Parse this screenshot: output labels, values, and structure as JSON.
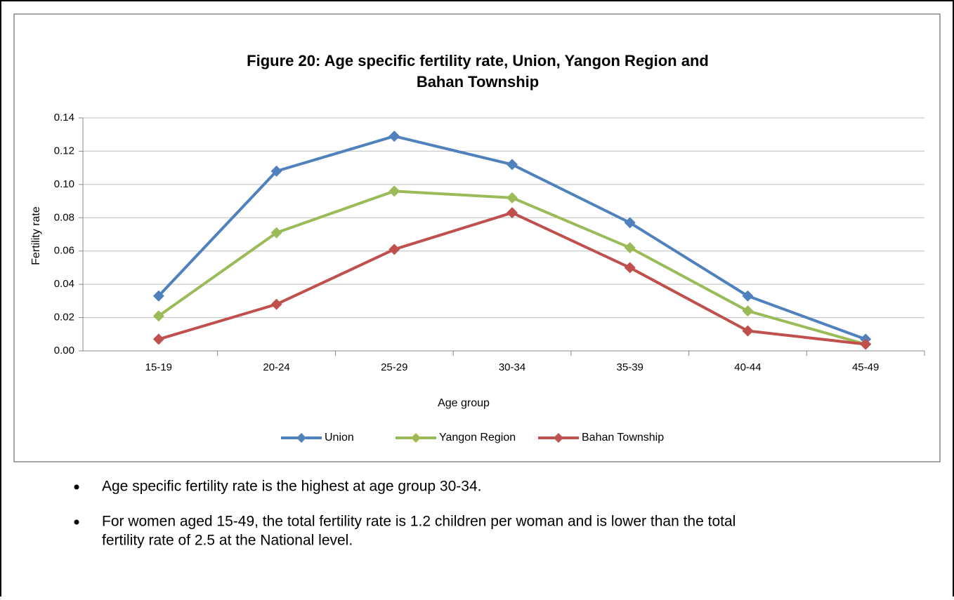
{
  "chart_data": {
    "type": "line",
    "title": "Figure 20: Age specific fertility rate, Union, Yangon Region and",
    "title_line2": "Bahan Township",
    "x_label": "Age group",
    "y_label": "Fertility rate",
    "categories": [
      "15-19",
      "20-24",
      "25-29",
      "30-34",
      "35-39",
      "40-44",
      "45-49"
    ],
    "series": [
      {
        "name": "Union",
        "color": "#4f81bd",
        "values": [
          0.033,
          0.108,
          0.129,
          0.112,
          0.077,
          0.033,
          0.007
        ]
      },
      {
        "name": "Yangon Region",
        "color": "#9bbb59",
        "values": [
          0.021,
          0.071,
          0.096,
          0.092,
          0.062,
          0.024,
          0.004
        ]
      },
      {
        "name": "Bahan Township",
        "color": "#c0504d",
        "values": [
          0.007,
          0.028,
          0.061,
          0.083,
          0.05,
          0.012,
          0.004
        ]
      }
    ],
    "ylim": [
      0,
      0.14
    ],
    "yticks": [
      {
        "value": 0,
        "label": "0.00"
      },
      0.02,
      0.04,
      0.06,
      0.08,
      {
        "value": 0.1,
        "label": "0.10"
      },
      0.12,
      0.14
    ],
    "grid": true,
    "legend": "bottom"
  },
  "bullets": [
    [
      "Age specific fertility rate is the highest at age group 30-34."
    ],
    [
      "For women aged 15-49, the total fertility rate is 1.2 children per woman and is lower than the total",
      "fertility rate of 2.5 at the National level."
    ]
  ]
}
